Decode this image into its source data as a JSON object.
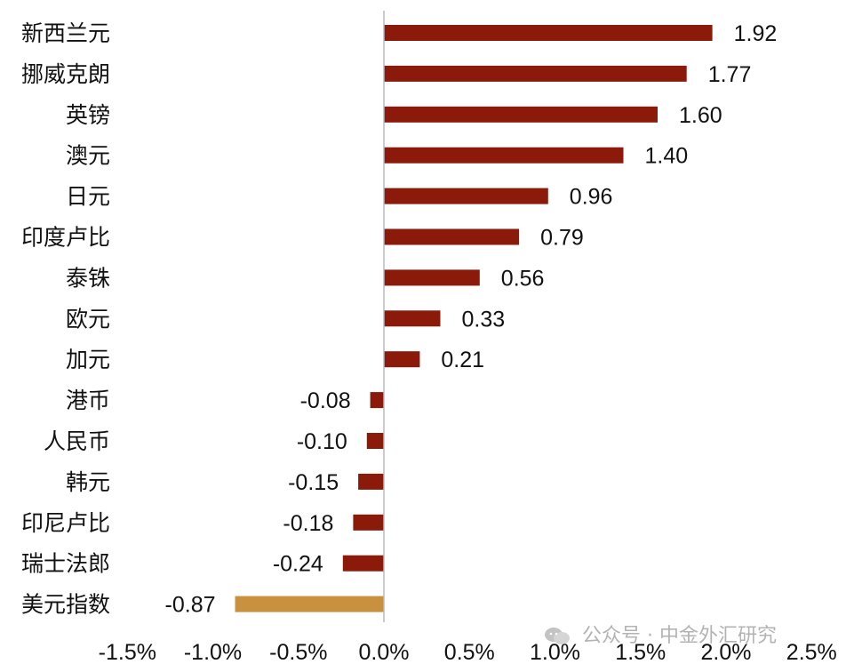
{
  "chart_data": {
    "type": "bar",
    "orientation": "horizontal",
    "categories": [
      "新西兰元",
      "挪威克朗",
      "英镑",
      "澳元",
      "日元",
      "印度卢比",
      "泰铢",
      "欧元",
      "加元",
      "港币",
      "人民币",
      "韩元",
      "印尼卢比",
      "瑞士法郎",
      "美元指数"
    ],
    "values": [
      1.92,
      1.77,
      1.6,
      1.4,
      0.96,
      0.79,
      0.56,
      0.33,
      0.21,
      -0.08,
      -0.1,
      -0.15,
      -0.18,
      -0.24,
      -0.87
    ],
    "value_labels": [
      "1.92",
      "1.77",
      "1.60",
      "1.40",
      "0.96",
      "0.79",
      "0.56",
      "0.33",
      "0.21",
      "-0.08",
      "-0.10",
      "-0.15",
      "-0.18",
      "-0.24",
      "-0.87"
    ],
    "x_ticks": [
      -1.5,
      -1.0,
      -0.5,
      0.0,
      0.5,
      1.0,
      1.5,
      2.0,
      2.5
    ],
    "x_tick_labels": [
      "-1.5%",
      "-1.0%",
      "-0.5%",
      "0.0%",
      "0.5%",
      "1.0%",
      "1.5%",
      "2.0%",
      "2.5%"
    ],
    "xlim": [
      -1.5,
      2.5
    ],
    "title": "",
    "xlabel": "",
    "ylabel": "",
    "grid": false,
    "legend": "none",
    "colors": {
      "default_bar": "#8B1A0A",
      "highlight_bar": "#C9913D",
      "axis": "#b8b8c4"
    },
    "highlight_category": "美元指数"
  },
  "watermark": {
    "text": "公众号 · 中金外汇研究",
    "icon": "wechat-icon"
  }
}
